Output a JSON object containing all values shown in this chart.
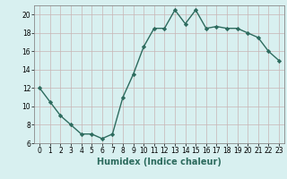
{
  "xlabel": "Humidex (Indice chaleur)",
  "x": [
    0,
    1,
    2,
    3,
    4,
    5,
    6,
    7,
    8,
    9,
    10,
    11,
    12,
    13,
    14,
    15,
    16,
    17,
    18,
    19,
    20,
    21,
    22,
    23
  ],
  "y": [
    12.0,
    10.5,
    9.0,
    8.0,
    7.0,
    7.0,
    6.5,
    7.0,
    11.0,
    13.5,
    16.5,
    18.5,
    18.5,
    20.5,
    19.0,
    20.5,
    18.5,
    18.7,
    18.5,
    18.5,
    18.0,
    17.5,
    16.0,
    15.0
  ],
  "ylim": [
    6,
    21
  ],
  "xlim": [
    -0.5,
    23.5
  ],
  "yticks": [
    6,
    8,
    10,
    12,
    14,
    16,
    18,
    20
  ],
  "xticks": [
    0,
    1,
    2,
    3,
    4,
    5,
    6,
    7,
    8,
    9,
    10,
    11,
    12,
    13,
    14,
    15,
    16,
    17,
    18,
    19,
    20,
    21,
    22,
    23
  ],
  "line_color": "#2d6b5e",
  "marker": "D",
  "marker_size": 2.2,
  "bg_color": "#d8f0f0",
  "grid_color": "#c8b4b4",
  "tick_label_fontsize": 5.5,
  "xlabel_fontsize": 7.0,
  "line_width": 1.0
}
